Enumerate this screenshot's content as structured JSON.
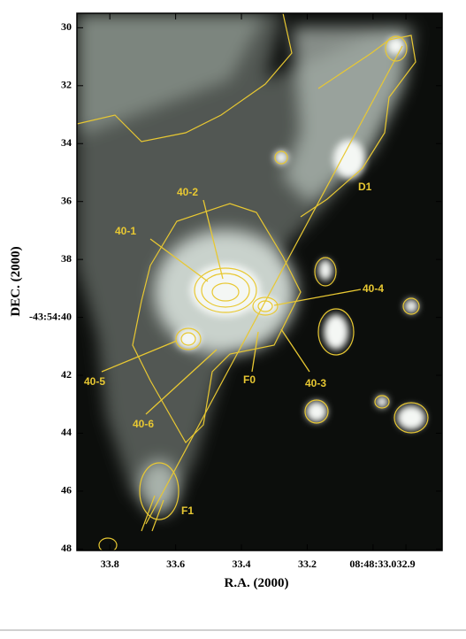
{
  "chart_data": {
    "type": "image",
    "xlabel": "R.A. (2000)",
    "ylabel": "DEC. (2000)",
    "xlim": [
      33.9,
      32.79
    ],
    "ylim": [
      29.5,
      48.05
    ],
    "xticks": [
      33.8,
      33.6,
      33.4,
      33.2,
      {
        "value": 33.0,
        "label": "08:48:33.0"
      },
      32.9
    ],
    "yticks": [
      30,
      32,
      34,
      36,
      38,
      {
        "value": 40,
        "label": "-43:54:40"
      },
      42,
      44,
      46,
      48
    ],
    "annotations": [
      "40-2",
      "40-1",
      "40-4",
      "40-5",
      "40-6",
      "F0",
      "40-3",
      "D1",
      "F1"
    ],
    "contour_color": "#e8c832"
  }
}
